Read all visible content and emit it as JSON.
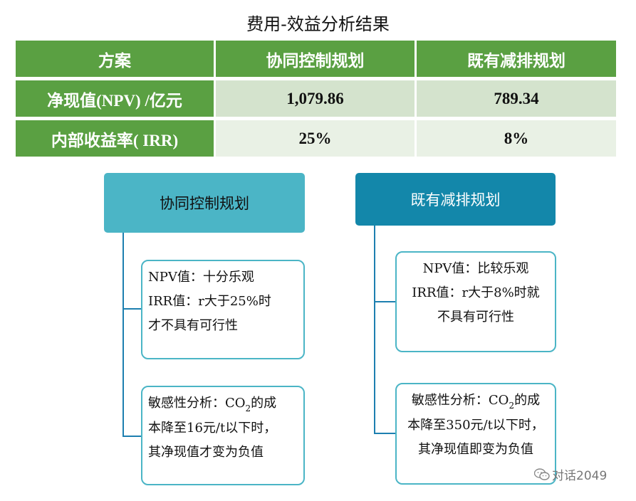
{
  "title": "费用-效益分析结果",
  "table": {
    "headers": [
      "方案",
      "协同控制规划",
      "既有减排规划"
    ],
    "rows": [
      {
        "label": "净现值(NPV) /亿元",
        "values": [
          "1,079.86",
          "789.34"
        ]
      },
      {
        "label": "内部收益率( IRR)",
        "values": [
          "25%",
          "8%"
        ]
      }
    ]
  },
  "diagram": {
    "left": {
      "header": "协同控制规划",
      "box1": [
        "NPV值：十分乐观",
        "IRR值：r大于25%时",
        "才不具有可行性"
      ],
      "box2": {
        "line1_pre": "敏感性分析：CO",
        "line1_sub": "2",
        "line1_post": "的成",
        "line2": "本降至16元/t以下时，",
        "line3": "其净现值才变为负值"
      }
    },
    "right": {
      "header": "既有减排规划",
      "box1": [
        "NPV值：比较乐观",
        "IRR值：r大于8%时就",
        "不具有可行性"
      ],
      "box2": {
        "line1_pre": "敏感性分析：CO",
        "line1_sub": "2",
        "line1_post": "的成",
        "line2": "本降至350元/t以下时，",
        "line3": "其净现值即变为负值"
      }
    }
  },
  "watermark": "对话2049",
  "colors": {
    "table_header": "#5aa042",
    "row1": "#d4e3cd",
    "row2": "#e9f1e5",
    "left_header": "#4bb5c6",
    "right_header": "#1387aa",
    "connector": "#1d7fb0"
  },
  "icons": {
    "watermark": "wechat-icon"
  }
}
